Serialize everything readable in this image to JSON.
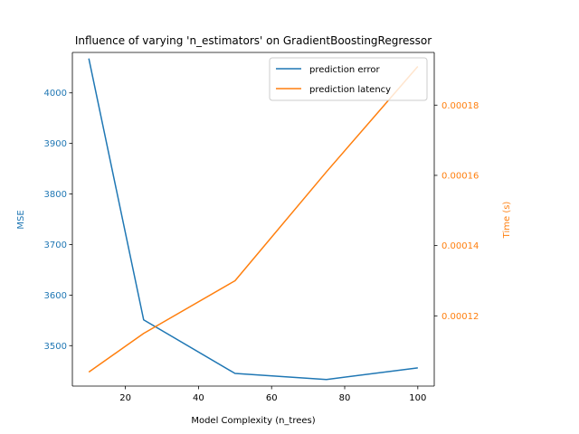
{
  "chart_data": {
    "type": "line",
    "title": "Influence of varying 'n_estimators' on GradientBoostingRegressor",
    "xlabel": "Model Complexity (n_trees)",
    "ylabel_left": "MSE",
    "ylabel_right": "Time (s)",
    "x": [
      10,
      25,
      50,
      75,
      100
    ],
    "xlim": [
      5.5,
      104.5
    ],
    "xticks": [
      20,
      40,
      60,
      80,
      100
    ],
    "y_left_lim": [
      3420,
      4080
    ],
    "y_left_ticks": [
      3500,
      3600,
      3700,
      3800,
      3900,
      4000
    ],
    "y_right_lim": [
      0.0001,
      0.000195
    ],
    "y_right_ticks": [
      0.00012,
      0.00014,
      0.00016,
      0.00018
    ],
    "y_right_tick_labels": [
      "0.00012",
      "0.00014",
      "0.00016",
      "0.00018"
    ],
    "series": [
      {
        "name": "prediction error",
        "axis": "left",
        "color": "#1f77b4",
        "values": [
          4068,
          3551,
          3445,
          3433,
          3456
        ]
      },
      {
        "name": "prediction latency",
        "axis": "right",
        "color": "#ff7f0e",
        "values": [
          0.000104,
          0.000115,
          0.00013,
          0.000161,
          0.000191
        ]
      }
    ],
    "legend_position": "top-right",
    "grid": false
  }
}
